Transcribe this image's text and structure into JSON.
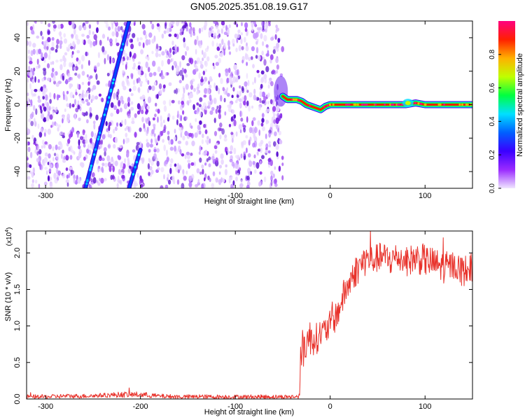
{
  "figure_title": "GN05.2025.351.08.19.G17",
  "chart_data": [
    {
      "type": "heatmap",
      "title": "GN05.2025.351.08.19.G17",
      "xlabel": "Height of straight line (km)",
      "ylabel": "Frequency (Hz)",
      "xlim": [
        -320,
        150
      ],
      "ylim": [
        -50,
        50
      ],
      "xticks": [
        -300,
        -200,
        -100,
        0,
        100
      ],
      "yticks": [
        -40,
        -20,
        0,
        20,
        40
      ],
      "xtick_labels": [
        "-300",
        "-200",
        "-100",
        "0",
        "100"
      ],
      "ytick_labels": [
        "-40",
        "-20",
        "0",
        "20",
        "40"
      ],
      "noise_region_x": [
        -320,
        -50
      ],
      "strong_track": {
        "x": [
          -50,
          -45,
          -40,
          -35,
          -30,
          -25,
          -20,
          -15,
          -10,
          -5,
          0,
          10,
          20,
          40,
          60,
          80,
          90,
          100,
          120,
          150
        ],
        "y": [
          5,
          3,
          3,
          3,
          2,
          0,
          -1,
          -2,
          -3,
          -1,
          0,
          0,
          0,
          0,
          0,
          0,
          1,
          0,
          0,
          0
        ]
      },
      "diagonal_tracks": [
        {
          "x": [
            -258,
            -212
          ],
          "y": [
            -50,
            50
          ]
        },
        {
          "x": [
            -212,
            -200
          ],
          "y": [
            -50,
            -27
          ]
        }
      ],
      "colorbar": {
        "label": "Normalized spectral amplitude",
        "range": [
          0,
          1
        ],
        "ticks": [
          0.0,
          0.2,
          0.4,
          0.6,
          0.8
        ],
        "tick_labels": [
          "0.0",
          "0.2",
          "0.4",
          "0.6",
          "0.8"
        ],
        "colormap": [
          "#f0e6ff",
          "#9a2bff",
          "#3a00ff",
          "#0060ff",
          "#00e0ff",
          "#00ff40",
          "#c0ff00",
          "#ffb000",
          "#ff2000",
          "#ff0080"
        ]
      }
    },
    {
      "type": "line",
      "title": "",
      "xlabel": "Height of straight line (km)",
      "ylabel": "SNR (10 * v/v)",
      "scale_label": "(x10",
      "scale_exponent": "4",
      "scale_close": ")",
      "xlim": [
        -320,
        150
      ],
      "ylim": [
        0,
        2.3
      ],
      "xticks": [
        -300,
        -200,
        -100,
        0,
        100
      ],
      "yticks": [
        0.0,
        0.5,
        1.0,
        1.5,
        2.0
      ],
      "xtick_labels": [
        "-300",
        "-200",
        "-100",
        "0",
        "100"
      ],
      "ytick_labels": [
        "0.0",
        "0.5",
        "1.0",
        "1.5",
        "2.0"
      ],
      "color": "#e8322b",
      "series": [
        {
          "name": "SNR",
          "x": [
            -320,
            -300,
            -280,
            -260,
            -240,
            -220,
            -200,
            -180,
            -160,
            -140,
            -120,
            -100,
            -80,
            -60,
            -40,
            -35,
            -33,
            -32,
            -31,
            -30,
            -28,
            -25,
            -20,
            -15,
            -10,
            -5,
            0,
            5,
            10,
            15,
            20,
            25,
            30,
            35,
            40,
            45,
            50,
            55,
            60,
            65,
            70,
            80,
            90,
            100,
            110,
            120,
            130,
            140,
            150
          ],
          "y": [
            0.03,
            0.03,
            0.04,
            0.04,
            0.05,
            0.06,
            0.06,
            0.04,
            0.03,
            0.03,
            0.03,
            0.03,
            0.03,
            0.03,
            0.03,
            0.03,
            0.04,
            0.15,
            0.55,
            0.62,
            0.72,
            0.8,
            0.85,
            0.82,
            0.9,
            0.93,
            1.02,
            1.1,
            1.25,
            1.45,
            1.58,
            1.72,
            1.8,
            1.88,
            1.92,
            1.9,
            1.93,
            1.95,
            1.92,
            1.9,
            1.95,
            1.88,
            1.93,
            1.9,
            1.85,
            1.8,
            1.83,
            1.75,
            1.8
          ],
          "noise_amplitude": [
            0.03,
            0.03,
            0.03,
            0.03,
            0.03,
            0.04,
            0.04,
            0.03,
            0.03,
            0.03,
            0.03,
            0.03,
            0.03,
            0.03,
            0.03,
            0.03,
            0.03,
            0.1,
            0.3,
            0.3,
            0.3,
            0.28,
            0.25,
            0.22,
            0.2,
            0.2,
            0.2,
            0.2,
            0.2,
            0.22,
            0.22,
            0.22,
            0.22,
            0.22,
            0.22,
            0.2,
            0.2,
            0.2,
            0.22,
            0.22,
            0.2,
            0.2,
            0.22,
            0.22,
            0.22,
            0.22,
            0.2,
            0.22,
            0.2
          ]
        }
      ]
    }
  ]
}
